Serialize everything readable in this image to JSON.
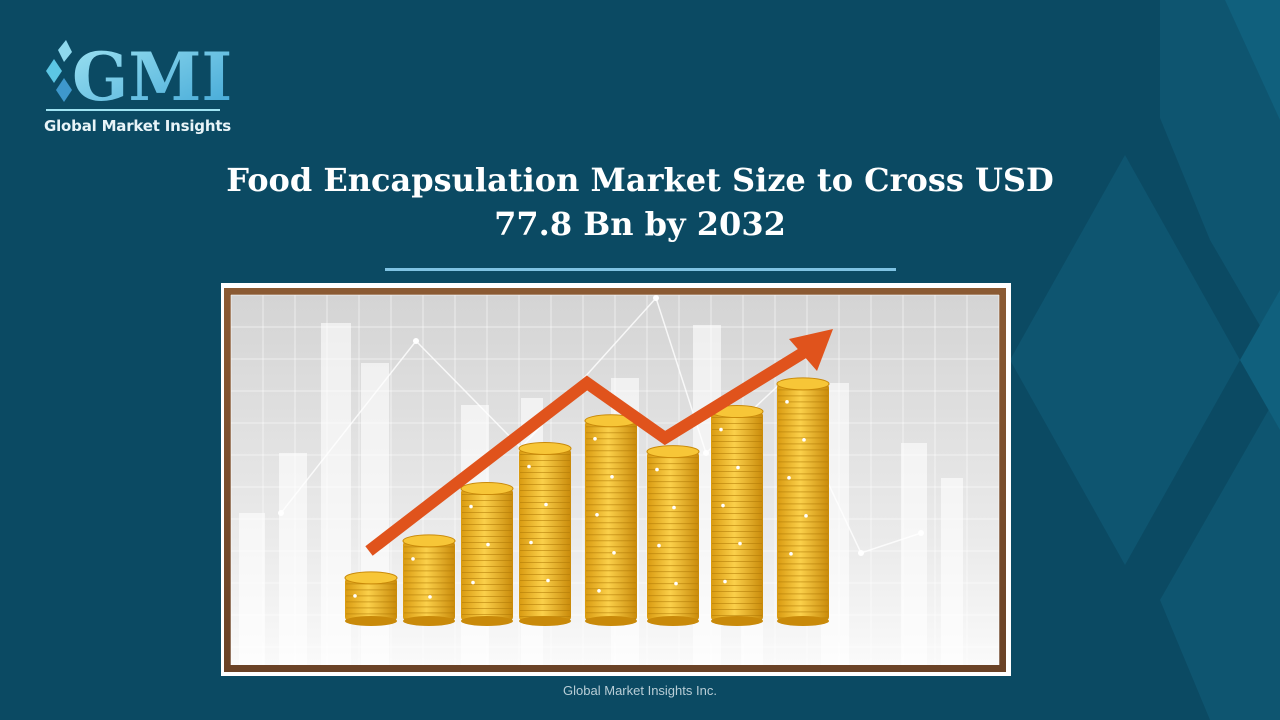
{
  "brand": {
    "logo_mark": "GMI",
    "name": "Global Market Insights"
  },
  "slide": {
    "title_line1": "Food Encapsulation Market Size to Cross USD",
    "title_line2": "77.8 Bn by 2032"
  },
  "illustration": {
    "icon": "gold-coin-stacks-growth-arrow-icon",
    "coin_stacks_relative_height": [
      0.14,
      0.26,
      0.43,
      0.56,
      0.65,
      0.55,
      0.68,
      0.77
    ],
    "arrow_color": "#e0531c",
    "coin_color": "#f2b81c",
    "frame_color": "#7a4f2e"
  },
  "footer": {
    "company": "Global Market Insights Inc."
  },
  "colors": {
    "background": "#0b4a63",
    "divider": "#7fc3e3",
    "title": "#ffffff"
  }
}
